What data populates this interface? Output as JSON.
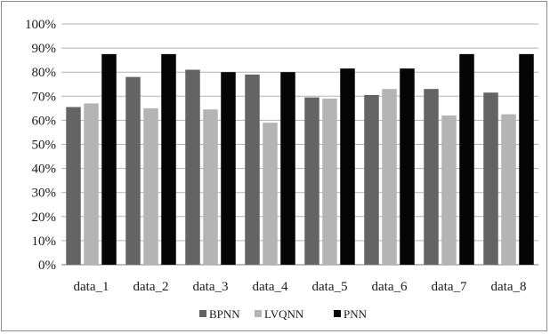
{
  "chart_data": {
    "type": "bar",
    "categories": [
      "data_1",
      "data_2",
      "data_3",
      "data_4",
      "data_5",
      "data_6",
      "data_7",
      "data_8"
    ],
    "series": [
      {
        "name": "BPNN",
        "color": "#646464",
        "values": [
          65.5,
          78,
          81,
          79,
          69.5,
          70.5,
          73,
          71.5
        ]
      },
      {
        "name": "LVQNN",
        "color": "#b4b4b4",
        "values": [
          67,
          65,
          64.5,
          59,
          69,
          73,
          62,
          62.5
        ]
      },
      {
        "name": "PNN",
        "color": "#050505",
        "values": [
          87.5,
          87.5,
          80,
          80,
          81.5,
          81.5,
          87.5,
          87.5
        ]
      }
    ],
    "yticks": [
      "0%",
      "10%",
      "20%",
      "30%",
      "40%",
      "50%",
      "60%",
      "70%",
      "80%",
      "90%",
      "100%"
    ],
    "ylim": [
      0,
      100
    ],
    "grid": true,
    "legend": "bottom"
  }
}
